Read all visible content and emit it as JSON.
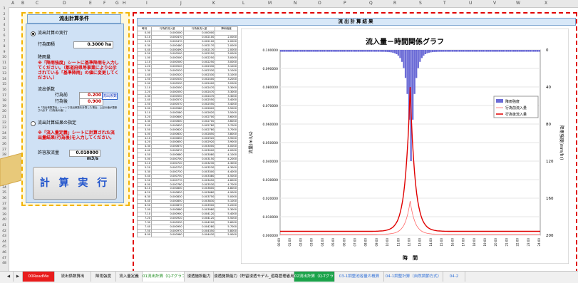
{
  "columns": [
    "A",
    "B",
    "C",
    "D",
    "E",
    "F",
    "G",
    "H",
    "I",
    "J",
    "K",
    "L",
    "M",
    "N",
    "O",
    "P",
    "Q",
    "R",
    "S",
    "T",
    "U",
    "V",
    "W",
    "X"
  ],
  "left_panel": {
    "title": "流出計算条件",
    "option1_label": "流出計算の実行",
    "area_label": "行為面積",
    "area_value": "0.3000 ha",
    "rain_label": "降雨量",
    "rain_note": "※「降雨強度」シートに基準降雨を入力してください。（都道府県等事業により公示されている「基準降雨」の値に変更してください。）",
    "coef_label": "流出係数",
    "before_label": "行為前",
    "before_value": "0.200",
    "after_label": "行為後",
    "after_value": "0.900",
    "flow_button": "流出係数",
    "small_note": "※「流出係数算出」シートで流出係数を計算した場合、上記の値が更新されます（行為後の値）。",
    "option2_label": "流出計算結果の指定",
    "option2_note": "※「流入量定義」シートに計算された流出量結果(行為後)を入力してください。",
    "allow_label": "許容放流量",
    "allow_value": "0.010000 m3/s",
    "exec_button": "計 算 実 行"
  },
  "right_panel": {
    "title": "流出計算結果"
  },
  "table": {
    "headers": [
      "時刻",
      "行為前流入量",
      "行為後流入量",
      "降雨強度"
    ],
    "rows": [
      [
        "0.00",
        "0.000000",
        "0.000000",
        ""
      ],
      [
        "0.10",
        "0.000470",
        "0.002100",
        "2.0000"
      ],
      [
        "0.20",
        "0.000470",
        "0.002100",
        "2.0000"
      ],
      [
        "0.30",
        "0.000480",
        "0.002170",
        "2.0000"
      ],
      [
        "0.40",
        "0.000490",
        "0.002170",
        "2.0000"
      ],
      [
        "0.50",
        "0.000500",
        "0.002250",
        "3.0000"
      ],
      [
        "1.00",
        "0.000500",
        "0.002250",
        "3.0000"
      ],
      [
        "1.10",
        "0.000500",
        "0.002250",
        "3.0000"
      ],
      [
        "1.20",
        "0.000520",
        "0.002330",
        "3.1000"
      ],
      [
        "1.30",
        "0.000520",
        "0.002330",
        "3.1000"
      ],
      [
        "1.40",
        "0.000520",
        "0.002330",
        "3.1000"
      ],
      [
        "1.50",
        "0.000530",
        "0.002400",
        "3.2000"
      ],
      [
        "2.00",
        "0.000530",
        "0.002400",
        "3.2000"
      ],
      [
        "2.10",
        "0.000550",
        "0.002470",
        "3.3000"
      ],
      [
        "2.20",
        "0.000550",
        "0.002470",
        "3.3000"
      ],
      [
        "2.30",
        "0.000550",
        "0.002470",
        "3.3000"
      ],
      [
        "2.40",
        "0.000570",
        "0.002550",
        "3.4000"
      ],
      [
        "2.50",
        "0.000570",
        "0.002550",
        "3.4000"
      ],
      [
        "3.00",
        "0.000580",
        "0.002620",
        "3.5000"
      ],
      [
        "3.10",
        "0.000580",
        "0.002620",
        "3.5000"
      ],
      [
        "3.20",
        "0.000600",
        "0.002700",
        "3.6000"
      ],
      [
        "3.30",
        "0.000600",
        "0.002700",
        "3.6000"
      ],
      [
        "3.40",
        "0.000620",
        "0.002780",
        "3.7000"
      ],
      [
        "3.50",
        "0.000620",
        "0.002780",
        "3.7000"
      ],
      [
        "4.00",
        "0.000630",
        "0.002850",
        "3.8000"
      ],
      [
        "4.10",
        "0.000650",
        "0.002920",
        "3.9000"
      ],
      [
        "4.20",
        "0.000650",
        "0.002920",
        "3.9000"
      ],
      [
        "4.30",
        "0.000670",
        "0.003000",
        "4.0000"
      ],
      [
        "4.40",
        "0.000670",
        "0.003000",
        "4.0000"
      ],
      [
        "4.50",
        "0.000680",
        "0.003080",
        "4.1000"
      ],
      [
        "5.00",
        "0.000700",
        "0.003150",
        "4.2000"
      ],
      [
        "5.10",
        "0.000720",
        "0.003230",
        "4.3000"
      ],
      [
        "5.20",
        "0.000720",
        "0.003230",
        "4.3000"
      ],
      [
        "5.30",
        "0.000730",
        "0.003300",
        "4.4000"
      ],
      [
        "5.40",
        "0.000750",
        "0.003380",
        "4.5000"
      ],
      [
        "5.50",
        "0.000770",
        "0.003450",
        "4.6000"
      ],
      [
        "6.00",
        "0.000780",
        "0.003530",
        "4.7000"
      ],
      [
        "6.10",
        "0.000800",
        "0.003600",
        "4.8000"
      ],
      [
        "6.20",
        "0.000820",
        "0.003680",
        "4.9000"
      ],
      [
        "6.30",
        "0.000830",
        "0.003750",
        "5.0000"
      ],
      [
        "6.40",
        "0.000850",
        "0.003830",
        "5.1000"
      ],
      [
        "6.50",
        "0.000870",
        "0.003900",
        "5.2000"
      ],
      [
        "7.00",
        "0.000880",
        "0.003980",
        "5.3000"
      ],
      [
        "7.10",
        "0.000900",
        "0.004120",
        "5.4000"
      ],
      [
        "7.20",
        "0.000920",
        "0.004120",
        "5.5000"
      ],
      [
        "7.30",
        "0.000930",
        "0.004200",
        "5.6000"
      ],
      [
        "7.40",
        "0.000950",
        "0.004280",
        "5.7000"
      ],
      [
        "7.50",
        "0.000970",
        "0.004350",
        "5.8000"
      ],
      [
        "8.00",
        "0.000980",
        "0.004430",
        "5.9000"
      ]
    ]
  },
  "chart_data": {
    "type": "line",
    "title": "流入量－時間関係グラフ",
    "xlabel": "時　間",
    "ylabel": "流量(m3/s)",
    "y2label": "降雨強度(mm/hr)",
    "ylim": [
      0,
      0.1
    ],
    "y_ticks": [
      "0.100000",
      "0.090000",
      "0.080000",
      "0.070000",
      "0.060000",
      "0.050000",
      "0.040000",
      "0.030000",
      "0.020000",
      "0.010000",
      "0.000000"
    ],
    "y2lim": [
      0,
      200
    ],
    "y2_ticks": [
      "0",
      "40",
      "80",
      "120",
      "160",
      "200"
    ],
    "y2_inverted": true,
    "legend": [
      "降雨強度",
      "行為前流入量",
      "行為後流入量"
    ],
    "legend_position": "right",
    "colors": {
      "rain": "#6b6bd6",
      "before": "#ff6666",
      "after": "#e00000"
    },
    "x_start_hour": 0,
    "x_end_hour": 24,
    "peak_hour": 12,
    "peak_before": 0.0185,
    "peak_after": 0.08,
    "base_before": 0.0005,
    "base_after": 0.0021,
    "peak_rain": 120,
    "base_rain": 2
  },
  "tabs": [
    {
      "label": "◀",
      "color": "#f0f0f0",
      "text": "#333"
    },
    {
      "label": "▶",
      "color": "#f0f0f0",
      "text": "#333"
    },
    {
      "label": "00ReadMe",
      "color": "#e81c1c",
      "text": "#ffffff"
    },
    {
      "label": "流出係数算出",
      "color": "#f0f0f0",
      "text": "#000"
    },
    {
      "label": "降雨強度",
      "color": "#f0f0f0",
      "text": "#000"
    },
    {
      "label": "流入量定義",
      "color": "#f0f0f0",
      "text": "#000"
    },
    {
      "label": "01流出計算（Q-Tグラフ）",
      "color": "#ffffff",
      "text": "#1a8a1a"
    },
    {
      "label": "浸透施設能力",
      "color": "#f0f0f0",
      "text": "#000"
    },
    {
      "label": "浸透施設能力（貯留浸透モデル_道路管理者用）",
      "color": "#f0f0f0",
      "text": "#000"
    },
    {
      "label": "02流出計算（Q-Tグラフ）",
      "color": "#1ba34a",
      "text": "#ffffff"
    },
    {
      "label": "03-1調整池容量の概算",
      "color": "#f0f0f0",
      "text": "#2e6fd8"
    },
    {
      "label": "04-1調整計算（自然調節方式）",
      "color": "#f0f0f0",
      "text": "#2e6fd8"
    },
    {
      "label": "04-2",
      "color": "#f0f0f0",
      "text": "#2e6fd8"
    }
  ]
}
